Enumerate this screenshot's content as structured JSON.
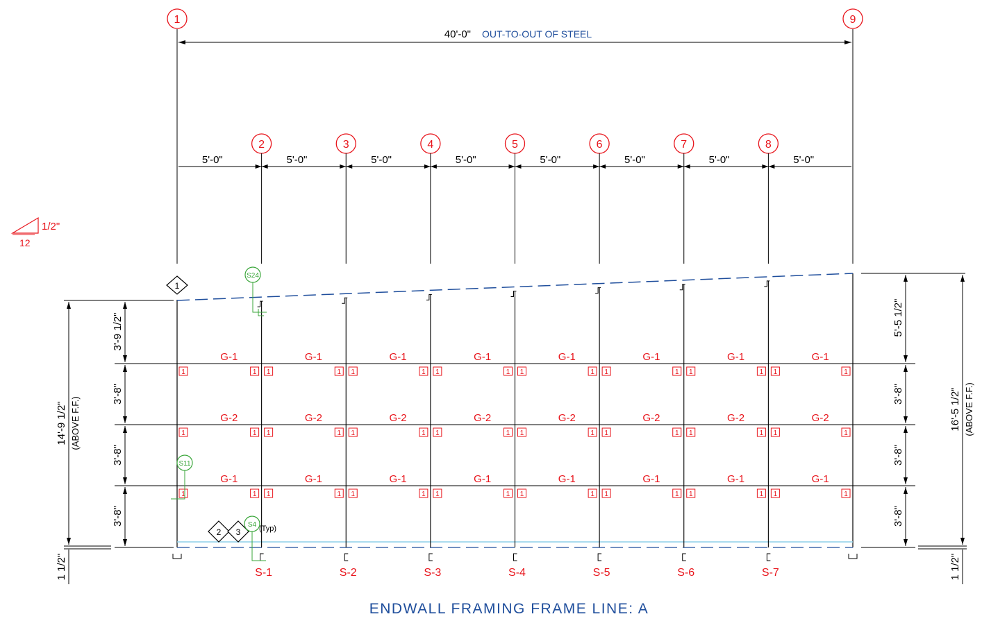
{
  "title": "ENDWALL FRAMING FRAME LINE: A",
  "overall_dimension": {
    "value": "40'-0\"",
    "note": "OUT-TO-OUT OF STEEL"
  },
  "grid_lines": [
    "1",
    "2",
    "3",
    "4",
    "5",
    "6",
    "7",
    "8",
    "9"
  ],
  "bay_dimensions": [
    "5'-0\"",
    "5'-0\"",
    "5'-0\"",
    "5'-0\"",
    "5'-0\"",
    "5'-0\"",
    "5'-0\"",
    "5'-0\""
  ],
  "roof_slope": {
    "rise": "1/2\"",
    "run": "12"
  },
  "left_dimensions": {
    "total": "14'-9 1/2\"",
    "total_note": "(ABOVE F.F.)",
    "segments": [
      "3'-9 1/2\"",
      "3'-8\"",
      "3'-8\"",
      "3'-8\""
    ],
    "base": "1 1/2\""
  },
  "right_dimensions": {
    "total": "16'-5 1/2\"",
    "total_note": "(ABOVE F.F.)",
    "segments": [
      "5'-5 1/2\"",
      "3'-8\"",
      "3'-8\"",
      "3'-8\""
    ],
    "base": "1 1/2\""
  },
  "girt_rows": [
    {
      "mark": "G-1"
    },
    {
      "mark": "G-2"
    },
    {
      "mark": "G-1"
    }
  ],
  "column_marks": [
    "S-1",
    "S-2",
    "S-3",
    "S-4",
    "S-5",
    "S-6",
    "S-7"
  ],
  "connection_tag": "1",
  "details": {
    "s24": "S24",
    "s11": "S11",
    "s4": "S4",
    "typ": "(Typ)",
    "diamond_top": "1",
    "diamond_a": "2",
    "diamond_b": "3"
  },
  "colors": {
    "dimension": "#000000",
    "member_mark": "#e8141b",
    "roof_line": "#1f4e9c",
    "detail_bubble": "#3aa63a",
    "base_line": "#8ecfe8"
  }
}
